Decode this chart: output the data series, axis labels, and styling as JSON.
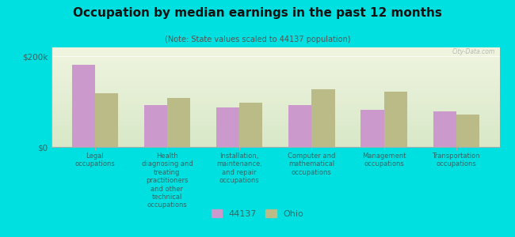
{
  "title": "Occupation by median earnings in the past 12 months",
  "subtitle": "(Note: State values scaled to 44137 population)",
  "background_color": "#00e0e0",
  "plot_bg_top": "#d8e8c8",
  "plot_bg_bottom": "#f0f5e0",
  "bar_color_44137": "#cc99cc",
  "bar_color_ohio": "#bbbb88",
  "categories": [
    "Legal\noccupations",
    "Health\ndiagnosing and\ntreating\npractitioners\nand other\ntechnical\noccupations",
    "Installation,\nmaintenance,\nand repair\noccupations",
    "Computer and\nmathematical\noccupations",
    "Management\noccupations",
    "Transportation\noccupations"
  ],
  "values_44137": [
    182000,
    92000,
    88000,
    92000,
    82000,
    78000
  ],
  "values_ohio": [
    118000,
    108000,
    98000,
    128000,
    122000,
    72000
  ],
  "ylim": [
    0,
    220000
  ],
  "yticks": [
    0,
    200000
  ],
  "ytick_labels": [
    "$0",
    "$200k"
  ],
  "legend_44137": "44137",
  "legend_ohio": "Ohio",
  "watermark": "City-Data.com"
}
